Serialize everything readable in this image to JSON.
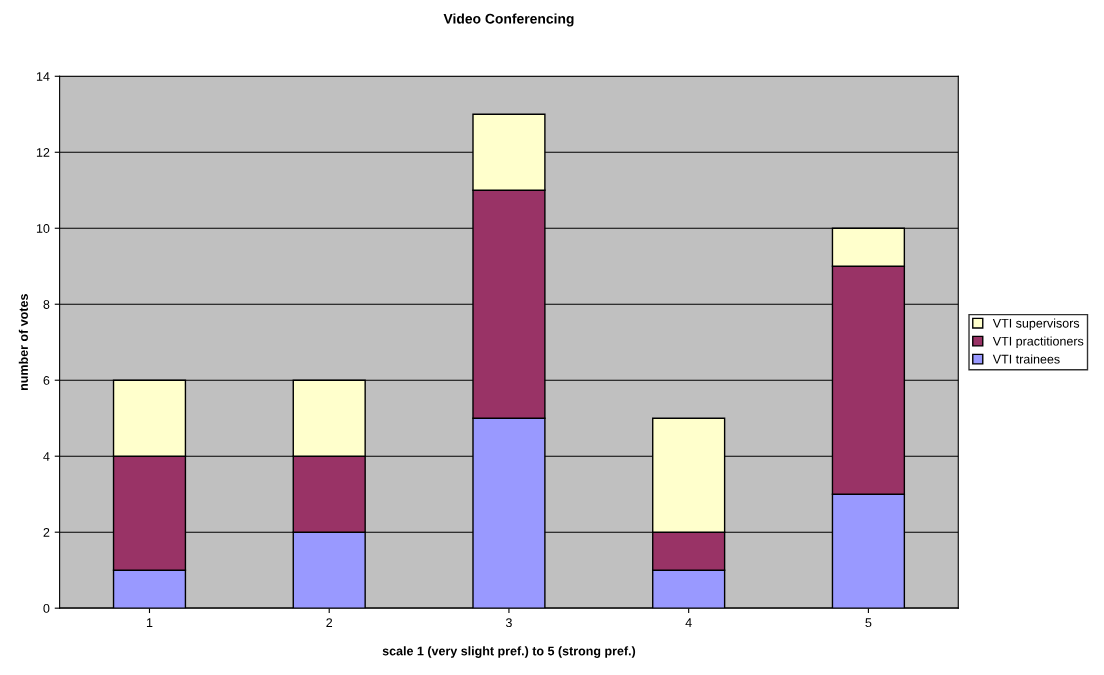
{
  "chart_data": {
    "type": "bar",
    "title": "Video Conferencing",
    "xlabel": "scale 1 (very slight pref.) to 5 (strong pref.)",
    "ylabel": "number of votes",
    "categories": [
      "1",
      "2",
      "3",
      "4",
      "5"
    ],
    "stacked": true,
    "series": [
      {
        "name": "VTI trainees",
        "color": "#9999ff",
        "values": [
          1,
          2,
          5,
          1,
          3
        ]
      },
      {
        "name": "VTI practitioners",
        "color": "#993366",
        "values": [
          3,
          2,
          6,
          1,
          6
        ]
      },
      {
        "name": "VTI supervisors",
        "color": "#ffffcc",
        "values": [
          2,
          2,
          2,
          3,
          1
        ]
      }
    ],
    "ylim": [
      0,
      14
    ],
    "yticks": [
      0,
      2,
      4,
      6,
      8,
      10,
      12,
      14
    ],
    "grid": "y",
    "legend": "right"
  }
}
